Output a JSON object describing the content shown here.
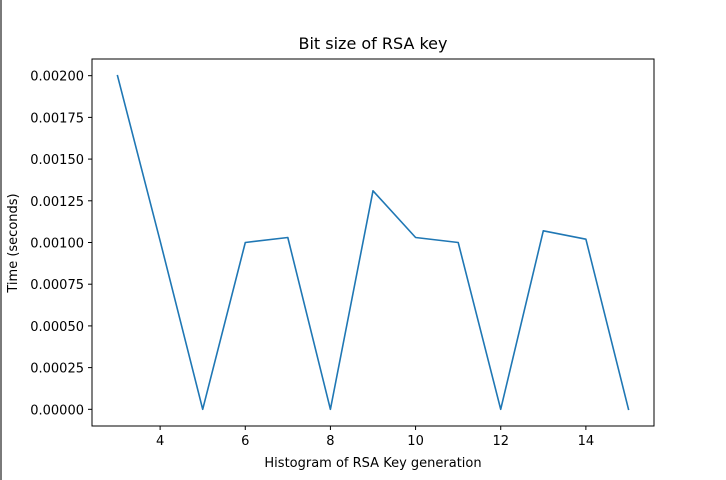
{
  "chart_data": {
    "type": "line",
    "title": "Bit size of RSA key",
    "xlabel": "Histogram of RSA Key generation",
    "ylabel": "Time (seconds)",
    "xlim": [
      2.4,
      15.6
    ],
    "ylim": [
      -0.0001,
      0.0021
    ],
    "x_ticks": [
      4,
      6,
      8,
      10,
      12,
      14
    ],
    "x_tick_labels": [
      "4",
      "6",
      "8",
      "10",
      "12",
      "14"
    ],
    "y_ticks": [
      0,
      0.00025,
      0.0005,
      0.00075,
      0.001,
      0.00125,
      0.0015,
      0.00175,
      0.002
    ],
    "y_tick_labels": [
      "0.00000",
      "0.00025",
      "0.00050",
      "0.00075",
      "0.00100",
      "0.00125",
      "0.00150",
      "0.00175",
      "0.00200"
    ],
    "grid": false,
    "series": [
      {
        "color": "#1f77b4",
        "x": [
          3,
          4,
          5,
          6,
          7,
          8,
          9,
          10,
          11,
          12,
          13,
          14,
          15
        ],
        "y": [
          0.002,
          0.00101,
          0.0,
          0.001,
          0.00103,
          0.0,
          0.00131,
          0.00103,
          0.001,
          0.0,
          0.00107,
          0.00102,
          0.0
        ]
      }
    ]
  }
}
